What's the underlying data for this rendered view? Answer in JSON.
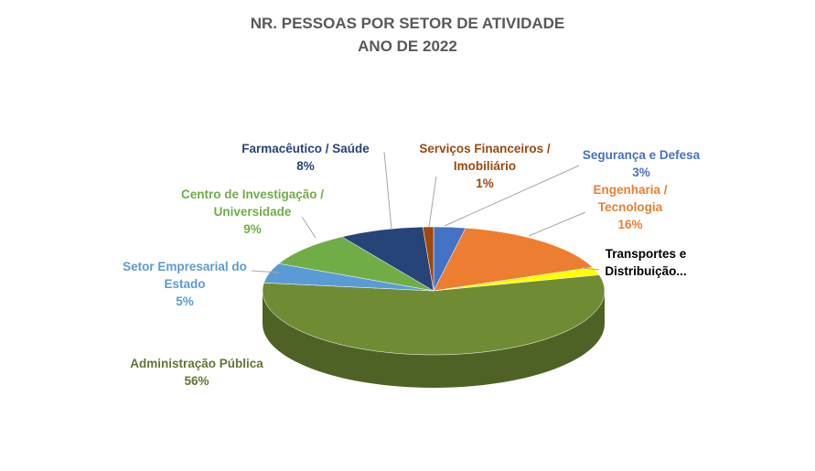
{
  "chart_data": {
    "type": "pie3d",
    "title": "NR. PESSOAS POR SETOR DE ATIVIDADE",
    "subtitle": "ANO DE 2022",
    "categories": [
      "Segurança e Defesa",
      "Engenharia / Tecnologia",
      "Transportes e Distribuição...",
      "Administração Pública",
      "Setor Empresarial do Estado",
      "Centro de Investigação / Universidade",
      "Farmacêutico / Saúde",
      "Serviços Financeiros / Imobiliário"
    ],
    "values": [
      3,
      16,
      2,
      56,
      5,
      9,
      8,
      1
    ],
    "value_labels": [
      "3%",
      "16%",
      null,
      "56%",
      "5%",
      "9%",
      "8%",
      "1%"
    ],
    "colors": [
      "#4472c4",
      "#ed7d31",
      "#ffff00",
      "#6f8c35",
      "#5b9bd5",
      "#70ad47",
      "#264478",
      "#9e480e"
    ],
    "label_colors": [
      "#4472c4",
      "#ed7d31",
      "#000000",
      "#5f7530",
      "#5b9bd5",
      "#70ad47",
      "#264478",
      "#9e480e"
    ]
  }
}
